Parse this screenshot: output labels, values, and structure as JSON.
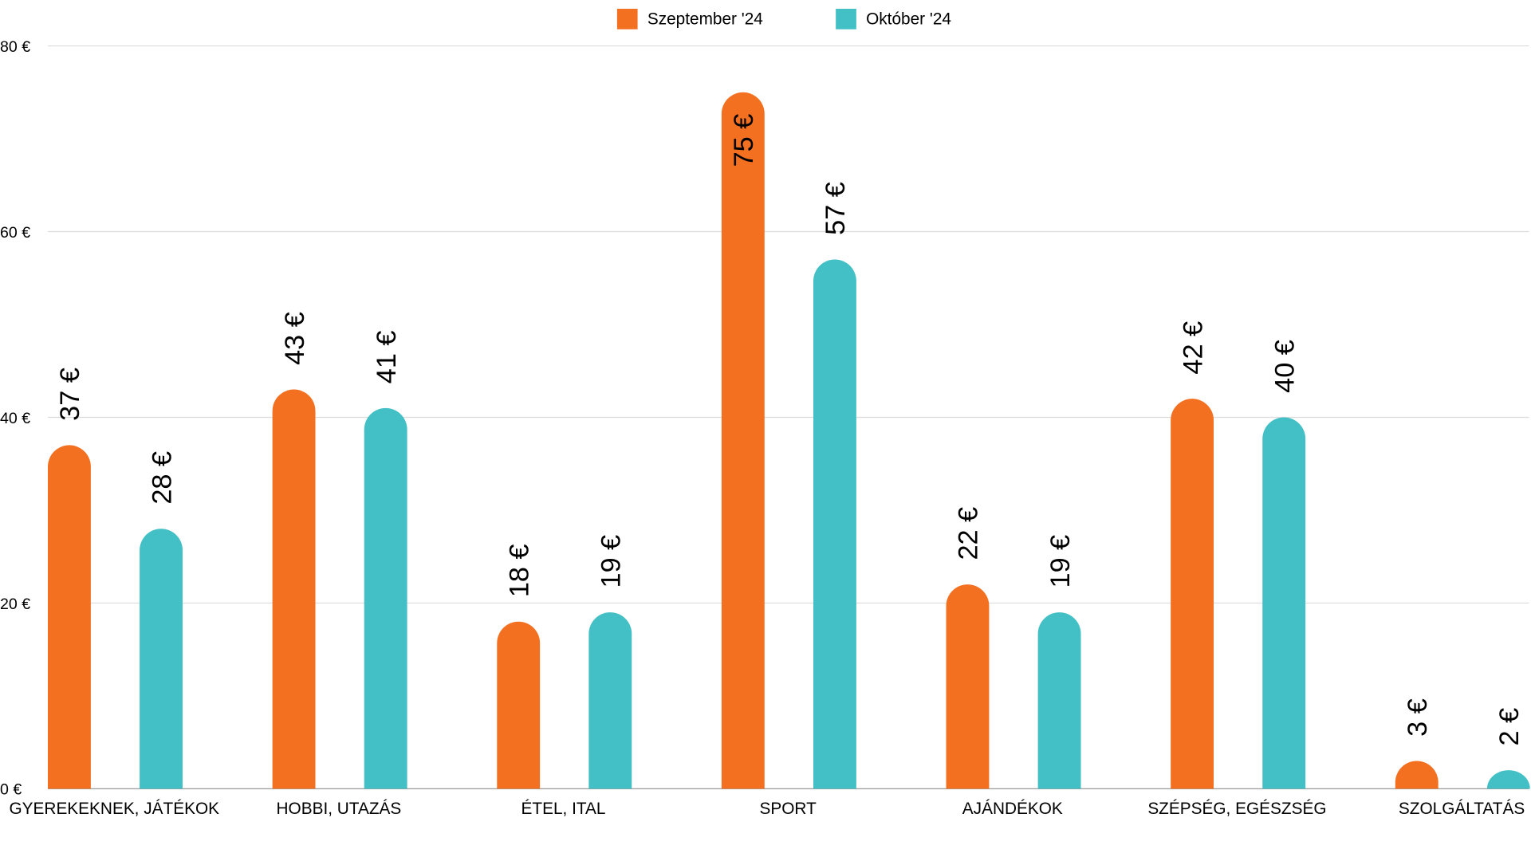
{
  "chart_data": {
    "type": "bar",
    "title": "",
    "xlabel": "",
    "ylabel": "",
    "ylim": [
      0,
      80
    ],
    "yticks": [
      0,
      20,
      40,
      60,
      80
    ],
    "ytick_labels": [
      "0 €",
      "20 €",
      "40 €",
      "60 €",
      "80 €"
    ],
    "grid": true,
    "legend_position": "top-center",
    "categories": [
      "GYEREKEKNEK, JÁTÉKOK",
      "HOBBI, UTAZÁS",
      "ÉTEL, ITAL",
      "SPORT",
      "AJÁNDÉKOK",
      "SZÉPSÉG, EGÉSZSÉG",
      "SZOLGÁLTATÁS"
    ],
    "series": [
      {
        "name": "Szeptember '24",
        "color": "#F37021",
        "values": [
          37,
          43,
          18,
          75,
          22,
          42,
          3
        ],
        "labels": [
          "37 €",
          "43 €",
          "18 €",
          "75 €",
          "22 €",
          "42 €",
          "3 €"
        ]
      },
      {
        "name": "Október '24",
        "color": "#42C0C5",
        "values": [
          28,
          41,
          19,
          57,
          19,
          40,
          2
        ],
        "labels": [
          "28 €",
          "41 €",
          "19 €",
          "57 €",
          "19 €",
          "40 €",
          "2 €"
        ]
      }
    ]
  }
}
